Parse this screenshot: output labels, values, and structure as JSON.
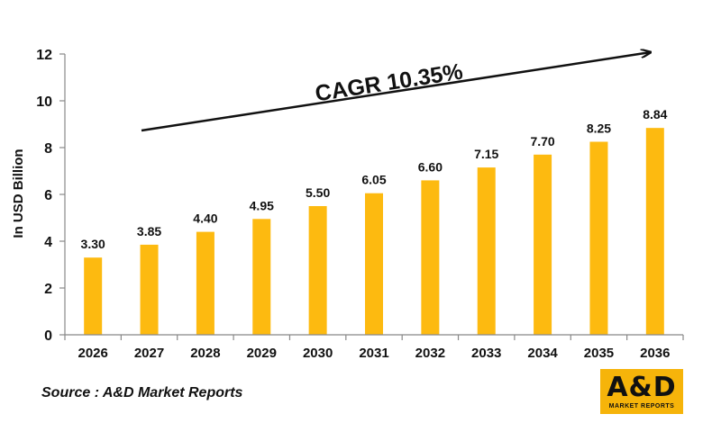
{
  "chart_data": {
    "type": "bar",
    "categories": [
      "2026",
      "2027",
      "2028",
      "2029",
      "2030",
      "2031",
      "2032",
      "2033",
      "2034",
      "2035",
      "2036"
    ],
    "values": [
      3.3,
      3.85,
      4.4,
      4.95,
      5.5,
      6.05,
      6.6,
      7.15,
      7.7,
      8.25,
      8.84
    ],
    "value_labels": [
      "3.30",
      "3.85",
      "4.40",
      "4.95",
      "5.50",
      "6.05",
      "6.60",
      "7.15",
      "7.70",
      "8.25",
      "8.84"
    ],
    "ylabel": "In USD Billion",
    "xlabel": "",
    "ylim": [
      0,
      12
    ],
    "yticks": [
      0,
      2,
      4,
      6,
      8,
      10,
      12
    ],
    "grid": false,
    "annotation": "CAGR 10.35%",
    "colors": {
      "bar": "#FDBA10",
      "axis": "#888888",
      "text": "#111111"
    }
  },
  "footer": {
    "source": "Source : A&D Market Reports"
  },
  "logo": {
    "main": "A&D",
    "sub": "MARKET REPORTS",
    "color": "#F6B40A"
  }
}
